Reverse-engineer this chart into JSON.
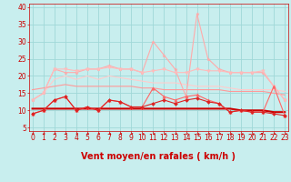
{
  "x": [
    0,
    1,
    2,
    3,
    4,
    5,
    6,
    7,
    8,
    9,
    10,
    11,
    12,
    13,
    14,
    15,
    16,
    17,
    18,
    19,
    20,
    21,
    22,
    23
  ],
  "series": [
    {
      "name": "rafales_max",
      "color": "#ffaaaa",
      "linewidth": 0.8,
      "marker": "*",
      "markersize": 2.5,
      "y": [
        13,
        15,
        22,
        21,
        21,
        22,
        22,
        23,
        22,
        22,
        21,
        30,
        26,
        22,
        14,
        38,
        25,
        22,
        21,
        21,
        21,
        21,
        17,
        13
      ]
    },
    {
      "name": "rafales_moy_high",
      "color": "#ffbbbb",
      "linewidth": 0.8,
      "marker": "v",
      "markersize": 2.5,
      "y": [
        13,
        15,
        22,
        22,
        21.5,
        22,
        22,
        22.5,
        22,
        22,
        21,
        21.5,
        22,
        21,
        21,
        22,
        21.5,
        21.5,
        21,
        21,
        21,
        21.5,
        17,
        13
      ]
    },
    {
      "name": "rafales_moy_low",
      "color": "#ffcccc",
      "linewidth": 0.8,
      "marker": null,
      "markersize": 0,
      "y": [
        13,
        15,
        19,
        20,
        19,
        20,
        19,
        20,
        19.5,
        19,
        18.5,
        18,
        18,
        18,
        17.5,
        17,
        17,
        17,
        16.5,
        16,
        16,
        16,
        16,
        15.5
      ]
    },
    {
      "name": "vent_rafales_mid",
      "color": "#ff9999",
      "linewidth": 0.8,
      "marker": null,
      "markersize": 0,
      "y": [
        16,
        16.5,
        17,
        17.5,
        17,
        17,
        17,
        17,
        17,
        17,
        16.5,
        16.5,
        16,
        16,
        16,
        16,
        16,
        16,
        15.5,
        15.5,
        15.5,
        15.5,
        15,
        14.5
      ]
    },
    {
      "name": "vent_max",
      "color": "#ff6666",
      "linewidth": 0.8,
      "marker": "^",
      "markersize": 2.5,
      "y": [
        9,
        10,
        13,
        14,
        10,
        11,
        10,
        13,
        12.5,
        11,
        11,
        16.5,
        14,
        13,
        14,
        14.5,
        13,
        12,
        9.5,
        10,
        9.5,
        9.5,
        17,
        8.5
      ]
    },
    {
      "name": "vent_moy",
      "color": "#dd2222",
      "linewidth": 0.8,
      "marker": "D",
      "markersize": 2.0,
      "y": [
        9,
        10,
        13,
        14,
        10,
        11,
        10,
        13,
        12.5,
        11,
        11,
        12,
        13,
        12,
        13,
        13.5,
        12.5,
        12,
        9.5,
        10,
        9.5,
        9.5,
        9,
        8.5
      ]
    },
    {
      "name": "vent_min_flat",
      "color": "#cc0000",
      "linewidth": 1.5,
      "marker": null,
      "markersize": 0,
      "y": [
        10.5,
        10.5,
        10.5,
        10.5,
        10.5,
        10.5,
        10.5,
        10.5,
        10.5,
        10.5,
        10.5,
        10.5,
        10.5,
        10.5,
        10.5,
        10.5,
        10.5,
        10.5,
        10.5,
        10,
        10,
        10,
        9.5,
        9.5
      ]
    }
  ],
  "xlabel": "Vent moyen/en rafales ( km/h )",
  "xlim": [
    -0.3,
    23.3
  ],
  "ylim": [
    4,
    41
  ],
  "yticks": [
    5,
    10,
    15,
    20,
    25,
    30,
    35,
    40
  ],
  "xticks": [
    0,
    1,
    2,
    3,
    4,
    5,
    6,
    7,
    8,
    9,
    10,
    11,
    12,
    13,
    14,
    15,
    16,
    17,
    18,
    19,
    20,
    21,
    22,
    23
  ],
  "background_color": "#c8eeee",
  "grid_color": "#a0d8d8",
  "text_color": "#cc0000",
  "xlabel_fontsize": 7,
  "tick_fontsize": 5.5,
  "arrow_angles": [
    270,
    270,
    260,
    255,
    255,
    270,
    270,
    265,
    260,
    255,
    250,
    245,
    240,
    240,
    235,
    240,
    245,
    250,
    240,
    235,
    235,
    220,
    270,
    240
  ]
}
